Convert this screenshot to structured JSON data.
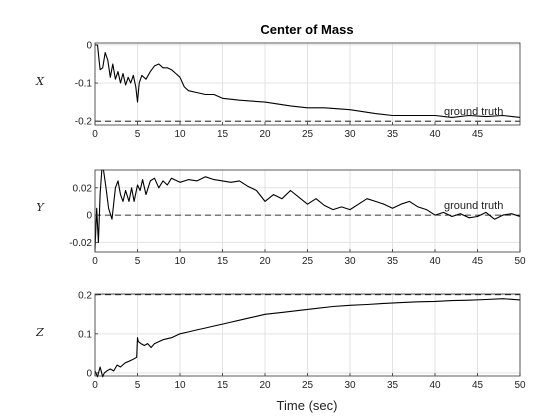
{
  "chart_data": {
    "type": "line",
    "title": "Center of Mass",
    "xlabel": "Time (sec)",
    "grid": true,
    "subplots": [
      {
        "ylabel": "X",
        "xlim": [
          0,
          50
        ],
        "ylim": [
          -0.21,
          0.005
        ],
        "xticks": [
          0,
          5,
          10,
          15,
          20,
          25,
          30,
          35,
          40,
          45
        ],
        "yticks": [
          0,
          -0.1,
          -0.2
        ],
        "ytick_labels": [
          "0",
          "-0.1",
          "-0.2"
        ],
        "ground_truth": -0.2,
        "annotation": "ground truth",
        "series": [
          {
            "x": [
              0,
              0.3,
              0.6,
              0.9,
              1.2,
              1.5,
              1.8,
              2.1,
              2.4,
              2.7,
              3.0,
              3.3,
              3.6,
              3.9,
              4.2,
              4.5,
              4.8,
              5.0,
              5.2,
              5.5,
              6.0,
              6.5,
              7.0,
              7.5,
              8.0,
              8.5,
              9.0,
              9.5,
              10.0,
              10.5,
              11,
              12,
              13,
              14,
              15,
              17,
              20,
              23,
              25,
              27,
              30,
              33,
              35,
              37,
              40,
              42,
              44,
              46,
              48,
              50
            ],
            "y": [
              0,
              0,
              -0.065,
              -0.06,
              -0.02,
              -0.04,
              -0.085,
              -0.05,
              -0.09,
              -0.07,
              -0.1,
              -0.075,
              -0.105,
              -0.085,
              -0.1,
              -0.08,
              -0.11,
              -0.15,
              -0.1,
              -0.08,
              -0.09,
              -0.07,
              -0.055,
              -0.05,
              -0.06,
              -0.06,
              -0.065,
              -0.075,
              -0.085,
              -0.11,
              -0.12,
              -0.125,
              -0.13,
              -0.13,
              -0.14,
              -0.145,
              -0.15,
              -0.16,
              -0.165,
              -0.165,
              -0.17,
              -0.18,
              -0.185,
              -0.185,
              -0.185,
              -0.19,
              -0.185,
              -0.188,
              -0.185,
              -0.19
            ]
          }
        ]
      },
      {
        "ylabel": "Y",
        "xlim": [
          0,
          50
        ],
        "ylim": [
          -0.027,
          0.033
        ],
        "xticks": [
          0,
          5,
          10,
          15,
          20,
          25,
          30,
          35,
          40,
          45,
          50
        ],
        "yticks": [
          0.02,
          0,
          -0.02
        ],
        "ytick_labels": [
          "0.02",
          "0",
          "-0.02"
        ],
        "ground_truth": 0,
        "annotation": "ground truth",
        "series": [
          {
            "x": [
              0,
              0.2,
              0.4,
              0.6,
              0.8,
              1.0,
              1.3,
              1.6,
              2.0,
              2.4,
              2.7,
              3.0,
              3.3,
              3.6,
              4.0,
              4.3,
              4.6,
              5.0,
              5.3,
              5.6,
              6.0,
              6.5,
              7.0,
              7.5,
              8,
              8.5,
              9,
              10,
              11,
              12,
              13,
              14,
              15,
              16,
              17,
              18,
              19,
              20,
              21,
              22,
              23,
              25,
              26,
              27,
              28,
              29,
              30,
              31,
              32,
              33,
              34,
              35,
              36,
              37,
              38,
              39,
              40,
              41,
              42,
              43,
              44,
              45,
              46,
              47,
              48,
              49,
              50
            ],
            "y": [
              -0.025,
              0.005,
              -0.02,
              0.015,
              0.033,
              0.033,
              0.02,
              0.005,
              -0.003,
              0.02,
              0.025,
              0.015,
              0.01,
              0.018,
              0.01,
              0.02,
              0.01,
              0.022,
              0.018,
              0.026,
              0.015,
              0.025,
              0.027,
              0.02,
              0.025,
              0.022,
              0.027,
              0.024,
              0.026,
              0.025,
              0.028,
              0.026,
              0.025,
              0.024,
              0.025,
              0.021,
              0.018,
              0.01,
              0.015,
              0.012,
              0.018,
              0.008,
              0.012,
              0.007,
              0.004,
              0.006,
              0.004,
              0.008,
              0.012,
              0.01,
              0.008,
              0.005,
              0.008,
              0.01,
              0.006,
              0.004,
              0.0,
              0.002,
              -0.001,
              0.001,
              -0.002,
              -0.001,
              0.002,
              -0.003,
              0.0,
              0.001,
              -0.001
            ]
          }
        ]
      },
      {
        "ylabel": "Z",
        "xlim": [
          0,
          50
        ],
        "ylim": [
          -0.008,
          0.202
        ],
        "xticks": [
          0,
          5,
          10,
          15,
          20,
          25,
          30,
          35,
          40,
          45,
          50
        ],
        "yticks": [
          0.2,
          0.1,
          0
        ],
        "ytick_labels": [
          "0.2",
          "0.1",
          "0"
        ],
        "ground_truth": 0.2,
        "annotation": "",
        "series": [
          {
            "x": [
              0,
              0.3,
              0.6,
              0.9,
              1.1,
              1.4,
              1.8,
              2.2,
              2.6,
              3.0,
              3.5,
              4.0,
              4.5,
              4.9,
              5.0,
              5.1,
              5.4,
              5.8,
              6.2,
              6.6,
              7.0,
              8,
              9,
              10,
              11,
              12,
              13,
              14,
              15,
              16,
              17,
              18,
              19,
              20,
              22,
              24,
              26,
              28,
              30,
              32,
              34,
              36,
              38,
              40,
              42,
              44,
              46,
              48,
              50
            ],
            "y": [
              0.005,
              -0.01,
              0.015,
              -0.01,
              0.0,
              0.005,
              0.01,
              0.005,
              0.02,
              0.015,
              0.025,
              0.03,
              0.035,
              0.04,
              0.09,
              0.08,
              0.075,
              0.07,
              0.075,
              0.065,
              0.075,
              0.085,
              0.09,
              0.1,
              0.105,
              0.11,
              0.115,
              0.12,
              0.125,
              0.13,
              0.135,
              0.14,
              0.145,
              0.15,
              0.155,
              0.16,
              0.165,
              0.17,
              0.173,
              0.175,
              0.178,
              0.18,
              0.182,
              0.183,
              0.185,
              0.186,
              0.188,
              0.19,
              0.187
            ]
          }
        ]
      }
    ]
  }
}
